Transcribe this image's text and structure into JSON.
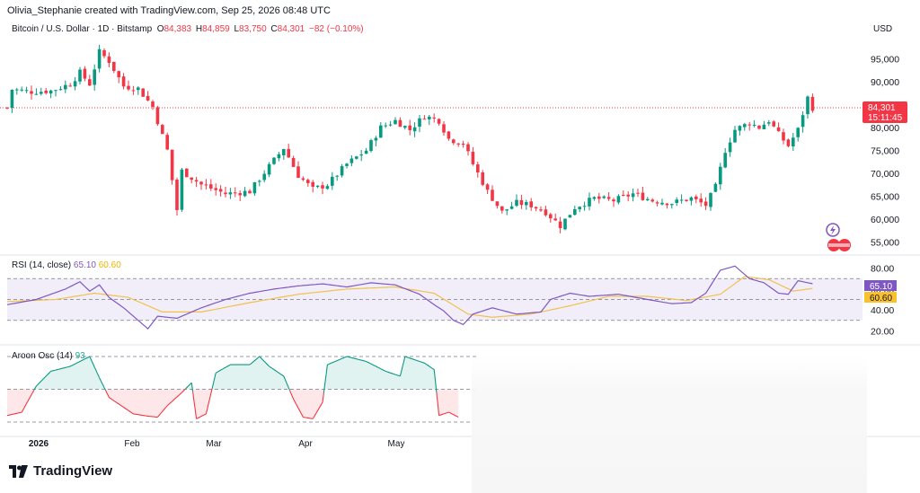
{
  "header": {
    "credit": "Olivia_Stephanie created with TradingView.com, Sep 25, 2026 08:48 UTC"
  },
  "symbol": {
    "name": "Bitcoin / U.S. Dollar · 1D · Bitstamp",
    "open_label": "O",
    "open": "84,383",
    "high_label": "H",
    "high": "84,859",
    "low_label": "L",
    "low": "83,750",
    "close_label": "C",
    "close": "84,301",
    "change": "−82 (−0.10%)"
  },
  "currency": "USD",
  "price_badge": {
    "price": "84,301",
    "countdown": "15:11:45"
  },
  "rsi": {
    "label": "RSI (14, close)",
    "value": "65.10",
    "ma_value": "60.60"
  },
  "aroon": {
    "label": "Aroon Osc (14)",
    "value": "93"
  },
  "brand": "TradingView",
  "colors": {
    "up": "#089981",
    "down": "#f23645",
    "rsi": "#7e57c2",
    "rsi_ma": "#f0c14b",
    "aroon": "#22ab94",
    "band": "#ede7f6"
  },
  "chart_data": [
    {
      "type": "candlestick",
      "title": "Bitcoin / U.S. Dollar · 1D · Bitstamp",
      "ylabel": "USD",
      "ylim": [
        52500,
        100000
      ],
      "y_ticks": [
        55000,
        60000,
        65000,
        70000,
        75000,
        80000,
        85000,
        90000,
        95000
      ],
      "y_tick_labels": [
        "55,000",
        "60,000",
        "65,000",
        "70,000",
        "75,000",
        "80,000",
        "85,000",
        "90,000",
        "95,000"
      ],
      "x_tick_labels": [
        "2026",
        "Feb",
        "Mar",
        "Apr",
        "May"
      ],
      "last_price": 84301,
      "close_path": [
        [
          1,
          88300
        ],
        [
          5,
          87800
        ],
        [
          9,
          88000
        ],
        [
          13,
          89500
        ],
        [
          15,
          92000
        ],
        [
          17,
          89500
        ],
        [
          19,
          96500
        ],
        [
          21,
          94500
        ],
        [
          24,
          89000
        ],
        [
          27,
          88500
        ],
        [
          30,
          84500
        ],
        [
          33,
          75000
        ],
        [
          35,
          62000
        ],
        [
          36,
          70500
        ],
        [
          40,
          67500
        ],
        [
          45,
          65500
        ],
        [
          50,
          66000
        ],
        [
          54,
          71500
        ],
        [
          57,
          75500
        ],
        [
          60,
          69500
        ],
        [
          63,
          66500
        ],
        [
          66,
          67500
        ],
        [
          70,
          72000
        ],
        [
          74,
          75000
        ],
        [
          77,
          80000
        ],
        [
          80,
          81500
        ],
        [
          83,
          79500
        ],
        [
          86,
          82500
        ],
        [
          89,
          81500
        ],
        [
          91,
          77500
        ],
        [
          94,
          76500
        ],
        [
          96,
          72000
        ],
        [
          99,
          66000
        ],
        [
          102,
          61500
        ],
        [
          105,
          63500
        ],
        [
          108,
          63000
        ],
        [
          111,
          61500
        ],
        [
          114,
          58500
        ],
        [
          117,
          62500
        ],
        [
          121,
          64500
        ],
        [
          125,
          64000
        ],
        [
          129,
          65500
        ],
        [
          133,
          64000
        ],
        [
          137,
          63500
        ],
        [
          141,
          64500
        ],
        [
          144,
          63000
        ],
        [
          146,
          67000
        ],
        [
          148,
          75000
        ],
        [
          150,
          79500
        ],
        [
          153,
          81000
        ],
        [
          155,
          80000
        ],
        [
          157,
          81500
        ],
        [
          159,
          78500
        ],
        [
          161,
          76000
        ],
        [
          163,
          79500
        ],
        [
          165,
          86500
        ],
        [
          166,
          84301
        ]
      ]
    },
    {
      "type": "line",
      "title": "RSI (14, close)",
      "ylim": [
        10,
        90
      ],
      "y_ticks": [
        20,
        40,
        60,
        80
      ],
      "y_tick_labels": [
        "20.00",
        "40.00",
        "60.00",
        "80.00"
      ],
      "bands": [
        30,
        70
      ],
      "series": [
        {
          "name": "RSI",
          "points": [
            [
              0,
              45
            ],
            [
              6,
              50
            ],
            [
              12,
              60
            ],
            [
              15,
              67
            ],
            [
              17,
              58
            ],
            [
              19,
              64
            ],
            [
              21,
              52
            ],
            [
              24,
              42
            ],
            [
              27,
              30
            ],
            [
              29,
              22
            ],
            [
              31,
              34
            ],
            [
              35,
              32
            ],
            [
              40,
              42
            ],
            [
              45,
              50
            ],
            [
              50,
              56
            ],
            [
              55,
              60
            ],
            [
              60,
              63
            ],
            [
              65,
              65
            ],
            [
              70,
              62
            ],
            [
              75,
              66
            ],
            [
              80,
              64
            ],
            [
              85,
              55
            ],
            [
              88,
              45
            ],
            [
              90,
              39
            ],
            [
              92,
              30
            ],
            [
              94,
              26
            ],
            [
              96,
              36
            ],
            [
              100,
              42
            ],
            [
              105,
              36
            ],
            [
              110,
              38
            ],
            [
              112,
              50
            ],
            [
              116,
              56
            ],
            [
              120,
              53
            ],
            [
              126,
              55
            ],
            [
              132,
              50
            ],
            [
              137,
              46
            ],
            [
              141,
              47
            ],
            [
              144,
              56
            ],
            [
              147,
              78
            ],
            [
              150,
              82
            ],
            [
              153,
              70
            ],
            [
              156,
              66
            ],
            [
              159,
              56
            ],
            [
              161,
              55
            ],
            [
              163,
              68
            ],
            [
              166,
              65.1
            ]
          ]
        },
        {
          "name": "RSI MA",
          "points": [
            [
              0,
              48
            ],
            [
              10,
              50
            ],
            [
              18,
              56
            ],
            [
              25,
              52
            ],
            [
              32,
              38
            ],
            [
              40,
              38
            ],
            [
              50,
              47
            ],
            [
              60,
              55
            ],
            [
              70,
              60
            ],
            [
              80,
              62
            ],
            [
              88,
              56
            ],
            [
              95,
              36
            ],
            [
              100,
              33
            ],
            [
              108,
              36
            ],
            [
              116,
              44
            ],
            [
              124,
              53
            ],
            [
              132,
              53
            ],
            [
              140,
              49
            ],
            [
              147,
              55
            ],
            [
              152,
              72
            ],
            [
              157,
              69
            ],
            [
              162,
              58
            ],
            [
              166,
              60.6
            ]
          ]
        }
      ]
    },
    {
      "type": "line",
      "title": "Aroon Osc (14)",
      "ylim": [
        -100,
        100
      ],
      "bands": [
        0
      ],
      "visible_range": [
        0,
        93
      ],
      "series": [
        {
          "name": "Aroon Osc",
          "points": [
            [
              0,
              -80
            ],
            [
              3,
              -70
            ],
            [
              6,
              10
            ],
            [
              9,
              55
            ],
            [
              13,
              70
            ],
            [
              17,
              100
            ],
            [
              19,
              35
            ],
            [
              21,
              -25
            ],
            [
              24,
              -55
            ],
            [
              26,
              -75
            ],
            [
              29,
              -82
            ],
            [
              31,
              -85
            ],
            [
              33,
              -50
            ],
            [
              36,
              -10
            ],
            [
              38,
              20
            ],
            [
              39,
              -90
            ],
            [
              41,
              -75
            ],
            [
              43,
              50
            ],
            [
              46,
              75
            ],
            [
              50,
              75
            ],
            [
              52,
              100
            ],
            [
              54,
              70
            ],
            [
              57,
              40
            ],
            [
              59,
              -30
            ],
            [
              61,
              -85
            ],
            [
              63,
              -90
            ],
            [
              65,
              -40
            ],
            [
              66,
              75
            ],
            [
              70,
              100
            ],
            [
              74,
              85
            ],
            [
              78,
              55
            ],
            [
              81,
              40
            ],
            [
              82,
              100
            ],
            [
              86,
              80
            ],
            [
              88,
              60
            ],
            [
              89,
              -80
            ],
            [
              91,
              -70
            ],
            [
              93,
              -85
            ]
          ]
        }
      ]
    }
  ]
}
